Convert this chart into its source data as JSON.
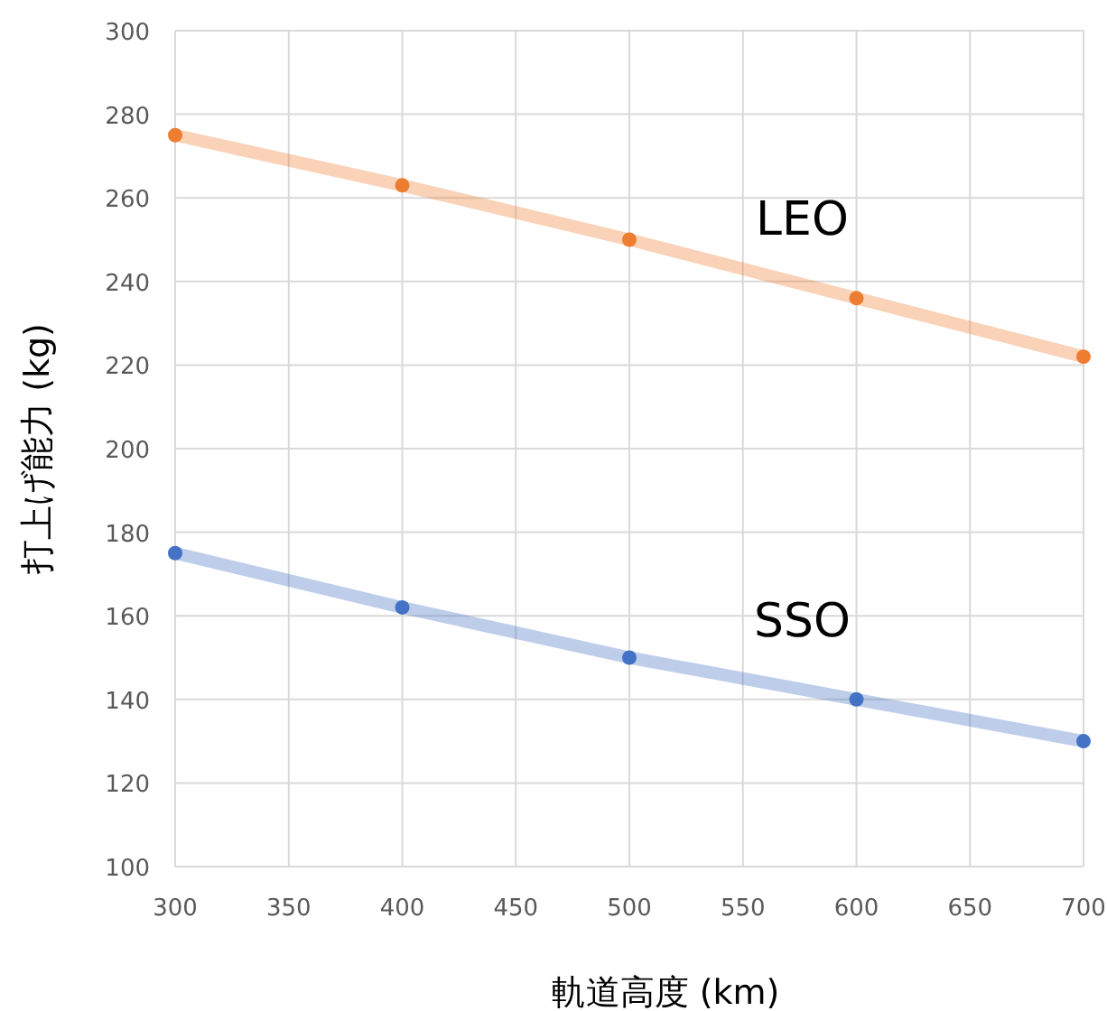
{
  "chart_data": {
    "type": "line",
    "xlabel": "軌道高度 (km)",
    "ylabel": "打上げ能力 (kg)",
    "x": [
      300,
      400,
      500,
      600,
      700
    ],
    "series": [
      {
        "name": "LEO",
        "color": "#ed7d31",
        "values": [
          275,
          263,
          250,
          236,
          222
        ]
      },
      {
        "name": "SSO",
        "color": "#4472c4",
        "values": [
          175,
          162,
          150,
          140,
          130
        ]
      }
    ],
    "xlim": [
      300,
      700
    ],
    "xticks": [
      300,
      350,
      400,
      450,
      500,
      550,
      600,
      650,
      700
    ],
    "ylim": [
      100,
      300
    ],
    "yticks": [
      100,
      120,
      140,
      160,
      180,
      200,
      220,
      240,
      260,
      280,
      300
    ],
    "grid": true,
    "marker": "circle",
    "line_style": "solid"
  }
}
